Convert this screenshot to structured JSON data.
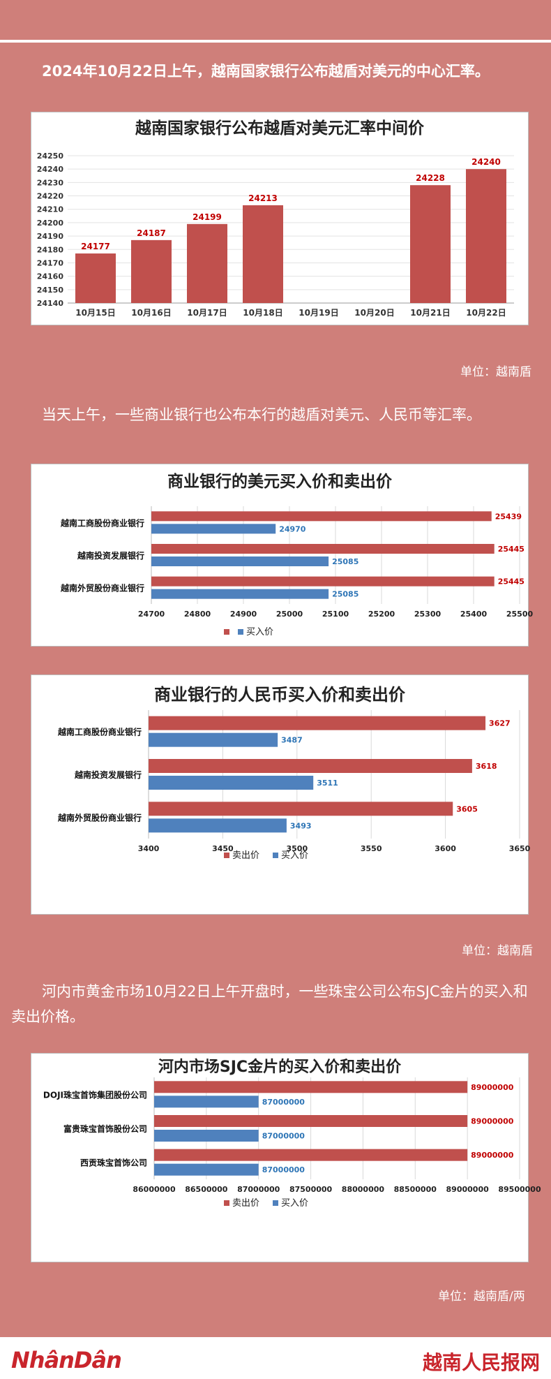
{
  "intro1": "2024年10月22日上午，越南国家银行公布越盾对美元的中心汇率。",
  "unit1": "单位：越南盾",
  "intro2": "当天上午，一些商业银行也公布本行的越盾对美元、人民币等汇率。",
  "unit2": "单位：越南盾",
  "intro3": "河内市黄金市场10月22日上午开盘时，一些珠宝公司公布SJC金片的买入和卖出价格。",
  "unit3": "单位：越南盾/两",
  "footer": {
    "logo": "NhânDân",
    "site": "越南人民报网"
  },
  "colors": {
    "background": "#cf7f7a",
    "sell": "#c0504d",
    "buy": "#4f81bd",
    "sell_label": "#c00000",
    "buy_label": "#2e75b6"
  },
  "chart_data": [
    {
      "type": "bar",
      "title": "越南国家银行公布越盾对美元汇率中间价",
      "categories": [
        "10月15日",
        "10月16日",
        "10月17日",
        "10月18日",
        "10月19日",
        "10月20日",
        "10月21日",
        "10月22日"
      ],
      "values": [
        24177,
        24187,
        24199,
        24213,
        null,
        null,
        24228,
        24240
      ],
      "ylim": [
        24140,
        24250
      ],
      "yticks": [
        24140,
        24150,
        24160,
        24170,
        24180,
        24190,
        24200,
        24210,
        24220,
        24230,
        24240,
        24250
      ],
      "grid": true
    },
    {
      "type": "bar",
      "orientation": "horizontal",
      "title": "商业银行的美元买入价和卖出价",
      "categories": [
        "越南工商股份商业银行",
        "越南投资发展银行",
        "越南外贸股份商业银行"
      ],
      "series": [
        {
          "name": "",
          "values": [
            25439,
            25445,
            25445
          ]
        },
        {
          "name": "买入价",
          "values": [
            24970,
            25085,
            25085
          ]
        }
      ],
      "xlim": [
        24700,
        25500
      ],
      "xticks": [
        24700,
        24800,
        24900,
        25000,
        25100,
        25200,
        25300,
        25400,
        25500
      ],
      "legend": "bottom",
      "grid": true
    },
    {
      "type": "bar",
      "orientation": "horizontal",
      "title": "商业银行的人民币买入价和卖出价",
      "categories": [
        "越南工商股份商业银行",
        "越南投资发展银行",
        "越南外贸股份商业银行"
      ],
      "series": [
        {
          "name": "卖出价",
          "values": [
            3627,
            3618,
            3605
          ]
        },
        {
          "name": "买入价",
          "values": [
            3487,
            3511,
            3493
          ]
        }
      ],
      "xlim": [
        3400,
        3650
      ],
      "xticks": [
        3400,
        3450,
        3500,
        3550,
        3600,
        3650
      ],
      "legend": "bottom",
      "grid": true
    },
    {
      "type": "bar",
      "orientation": "horizontal",
      "title": "河内市场SJC金片的买入价和卖出价",
      "categories": [
        "DOJI珠宝首饰集团股份公司",
        "富贵珠宝首饰股份公司",
        "西贡珠宝首饰公司"
      ],
      "series": [
        {
          "name": "卖出价",
          "values": [
            89000000,
            89000000,
            89000000
          ]
        },
        {
          "name": "买入价",
          "values": [
            87000000,
            87000000,
            87000000
          ]
        }
      ],
      "xlim": [
        86000000,
        89500000
      ],
      "xticks": [
        86000000,
        86500000,
        87000000,
        87500000,
        88000000,
        88500000,
        89000000,
        89500000
      ],
      "legend": "bottom",
      "grid": true
    }
  ]
}
